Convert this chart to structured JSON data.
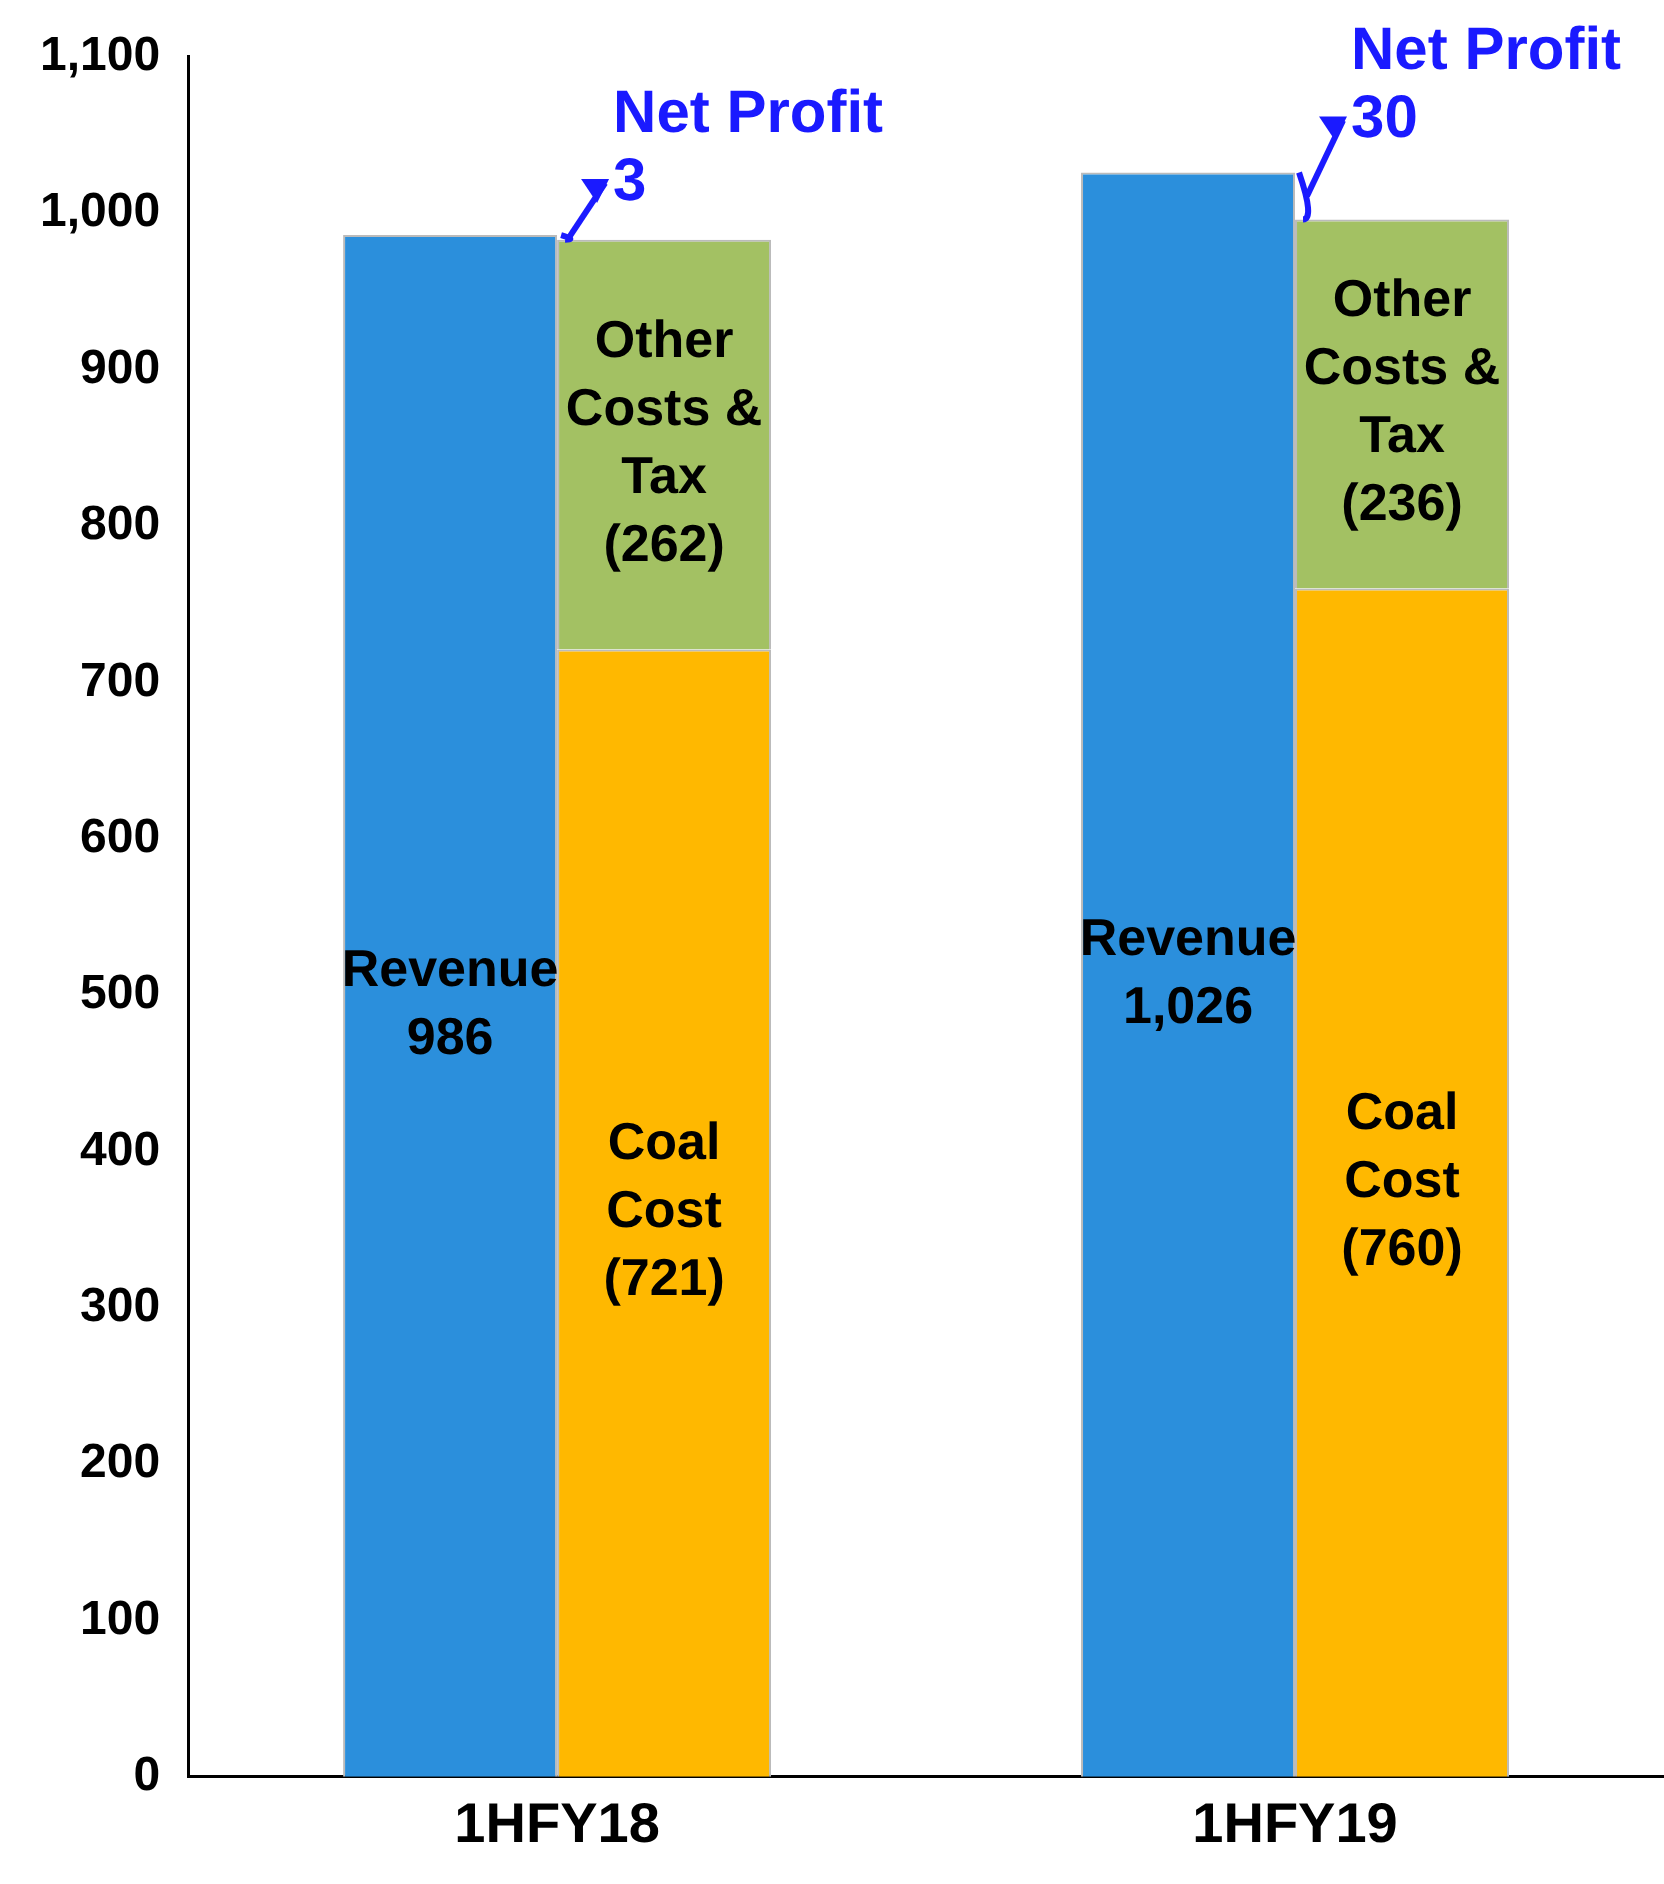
{
  "chart_data": {
    "type": "bar",
    "categories": [
      "1HFY18",
      "1HFY19"
    ],
    "series": [
      {
        "name": "Revenue",
        "color": "#2b8fdc",
        "values": [
          986,
          1026
        ],
        "value_labels": [
          "986",
          "1,026"
        ]
      },
      {
        "name": "Coal Cost",
        "color": "#ffb800",
        "values": [
          721,
          760
        ],
        "value_labels": [
          "(721)",
          "(760)"
        ],
        "base": [
          0,
          0
        ]
      },
      {
        "name": "Other Costs & Tax",
        "color": "#a3c163",
        "values": [
          262,
          236
        ],
        "value_labels": [
          "(262)",
          "(236)"
        ],
        "base": [
          721,
          760
        ]
      }
    ],
    "ylim": [
      0,
      1100
    ],
    "yticks": [
      0,
      100,
      200,
      300,
      400,
      500,
      600,
      700,
      800,
      900,
      {
        "value": 1000,
        "label": "1,000"
      },
      {
        "value": 1100,
        "label": "1,100"
      }
    ],
    "grid": false,
    "legend": false,
    "annotations": [
      {
        "text": "Net Profit\n3",
        "x": "1HFY18",
        "y": 986
      },
      {
        "text": "Net Profit\n30",
        "x": "1HFY19",
        "y": 1026
      }
    ]
  }
}
